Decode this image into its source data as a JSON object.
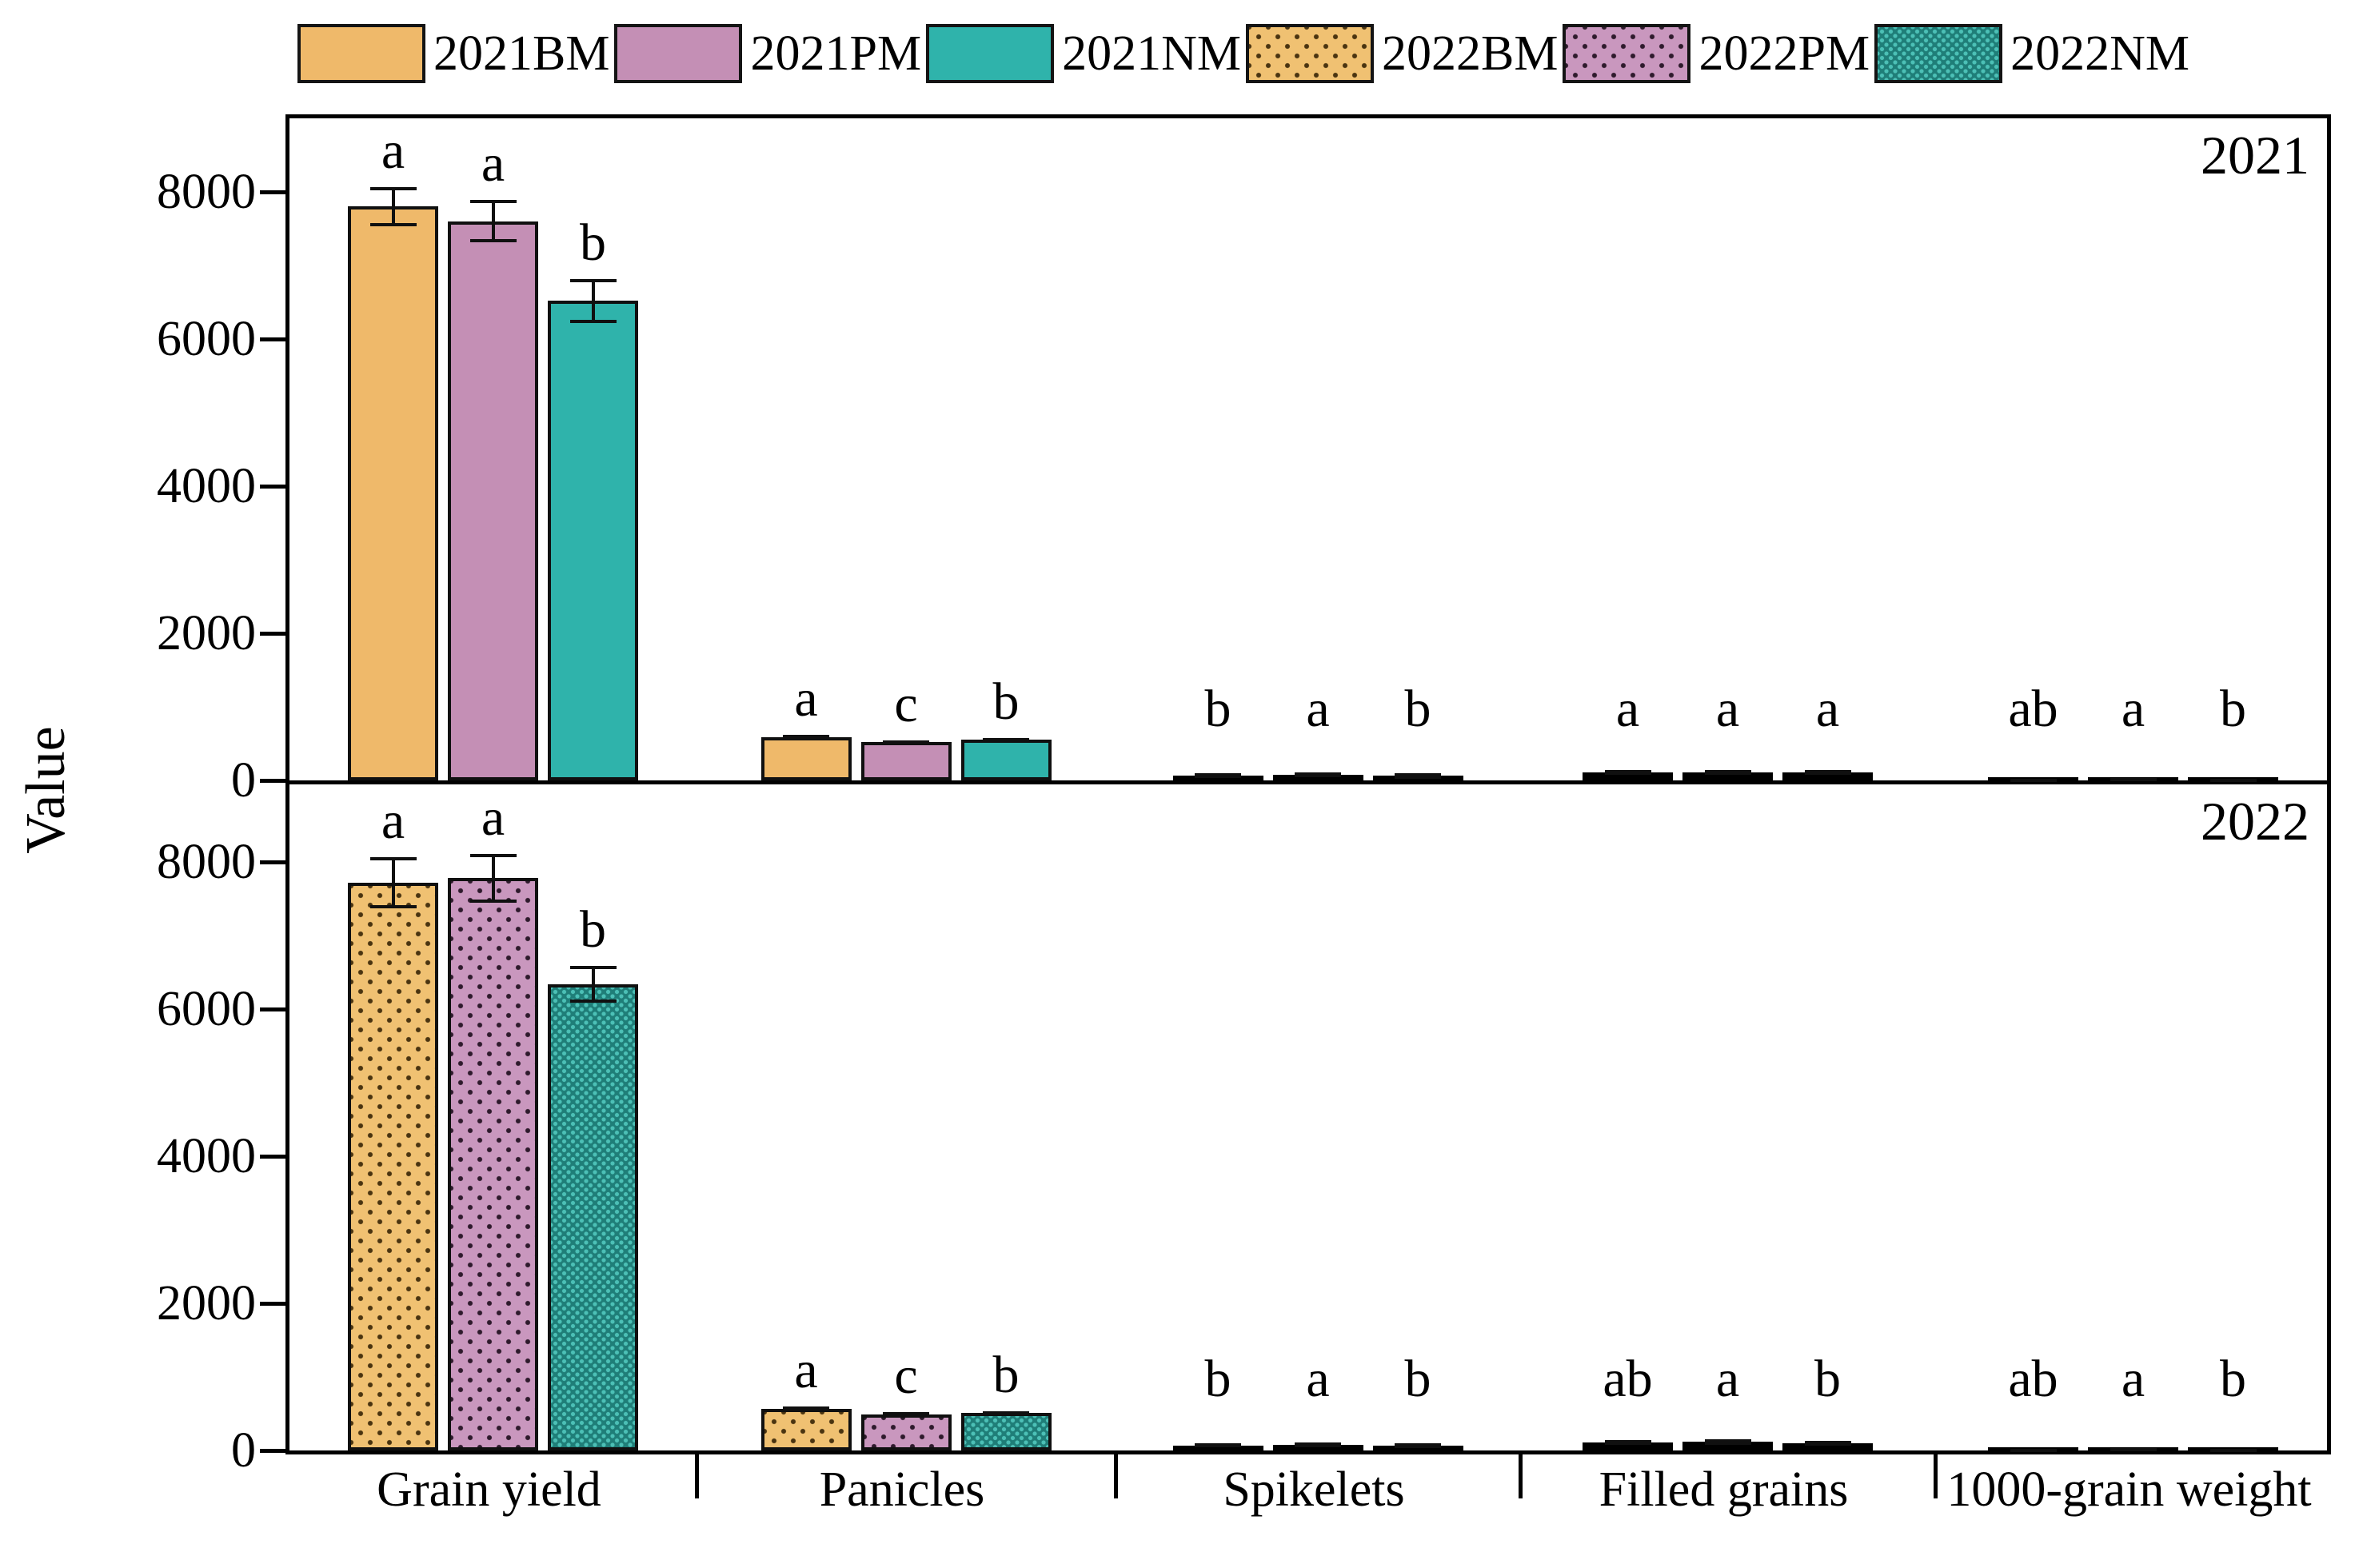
{
  "chart_data": {
    "type": "bar",
    "title": "",
    "ylabel": "Value",
    "ylim": [
      0,
      9000
    ],
    "yticks": [
      0,
      2000,
      4000,
      6000,
      8000
    ],
    "grid": false,
    "legend_position": "top",
    "categories": [
      "Grain yield",
      "Panicles",
      "Spikelets",
      "Filled grains",
      "1000-grain weight"
    ],
    "legend": [
      {
        "name": "2021BM",
        "color": "#EFB96A",
        "pattern": "solid",
        "dot": "#000000"
      },
      {
        "name": "2021PM",
        "color": "#C48FB5",
        "pattern": "solid",
        "dot": "#000000"
      },
      {
        "name": "2021NM",
        "color": "#2FB3AB",
        "pattern": "solid",
        "dot": "#000000"
      },
      {
        "name": "2022BM",
        "color": "#F0C172",
        "pattern": "dots",
        "dot": "#4a3410"
      },
      {
        "name": "2022PM",
        "color": "#C997BE",
        "pattern": "dots",
        "dot": "#2e1a2c"
      },
      {
        "name": "2022NM",
        "color": "#1F7E78",
        "pattern": "dense",
        "dot": "#4CC0B6"
      }
    ],
    "panels": [
      {
        "label": "2021",
        "series": [
          {
            "name": "2021BM",
            "values": [
              7800,
              590,
              65,
              105,
              26
            ],
            "errors": [
              270,
              25,
              12,
              10,
              1
            ],
            "letters": [
              "a",
              "a",
              "b",
              "a",
              "ab"
            ]
          },
          {
            "name": "2021PM",
            "values": [
              7600,
              525,
              75,
              110,
              27
            ],
            "errors": [
              290,
              20,
              12,
              10,
              1
            ],
            "letters": [
              "a",
              "c",
              "a",
              "a",
              "a"
            ]
          },
          {
            "name": "2021NM",
            "values": [
              6520,
              555,
              60,
              105,
              25
            ],
            "errors": [
              300,
              20,
              10,
              10,
              1
            ],
            "letters": [
              "b",
              "b",
              "b",
              "a",
              "b"
            ]
          }
        ]
      },
      {
        "label": "2022",
        "series": [
          {
            "name": "2022BM",
            "values": [
              7720,
              565,
              70,
              110,
              26
            ],
            "errors": [
              350,
              30,
              12,
              12,
              1
            ],
            "letters": [
              "a",
              "a",
              "b",
              "ab",
              "ab"
            ]
          },
          {
            "name": "2022PM",
            "values": [
              7780,
              490,
              80,
              115,
              27
            ],
            "errors": [
              330,
              30,
              12,
              10,
              1
            ],
            "letters": [
              "a",
              "c",
              "a",
              "a",
              "a"
            ]
          },
          {
            "name": "2022NM",
            "values": [
              6340,
              510,
              65,
              100,
              25
            ],
            "errors": [
              250,
              20,
              10,
              10,
              1
            ],
            "letters": [
              "b",
              "b",
              "b",
              "b",
              "b"
            ]
          }
        ]
      }
    ]
  }
}
